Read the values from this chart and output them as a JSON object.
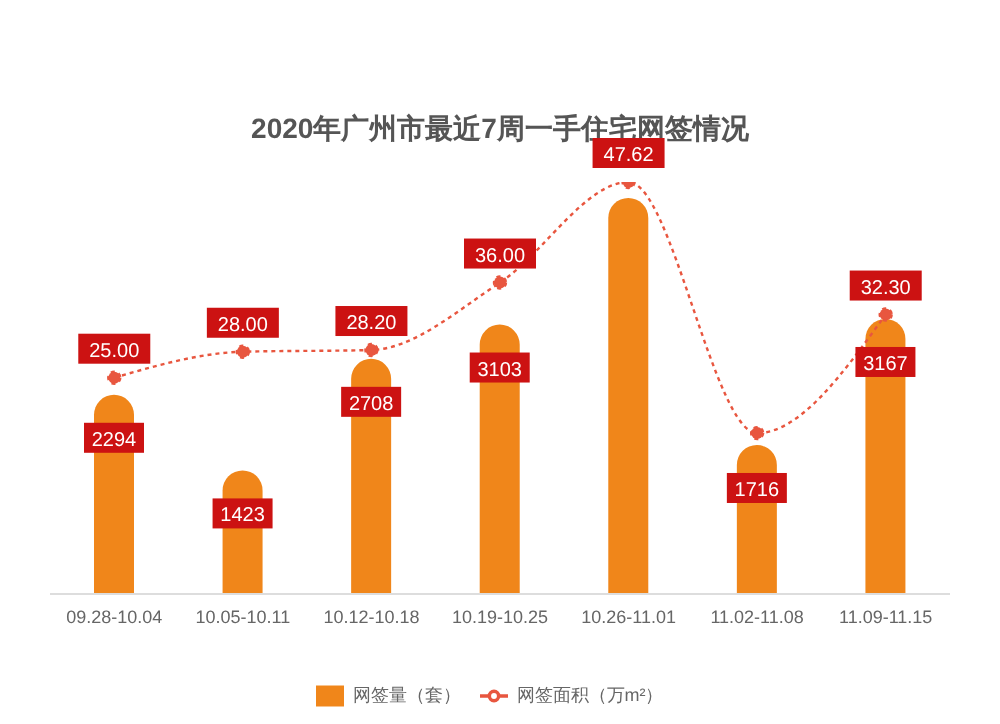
{
  "chart_data": {
    "type": "bar",
    "title": "2020年广州市最近7周一手住宅网签情况",
    "categories": [
      "09.28-10.04",
      "10.05-10.11",
      "10.12-10.18",
      "10.19-10.25",
      "10.26-11.01",
      "11.02-11.08",
      "11.09-11.15"
    ],
    "series": [
      {
        "name": "网签量（套）",
        "color": "#f0861a",
        "values": [
          2294,
          1423,
          2708,
          3103,
          4560,
          1716,
          3167
        ],
        "value_labels": [
          "2294",
          "1423",
          "2708",
          "3103",
          null,
          "1716",
          "3167"
        ]
      },
      {
        "name": "网签面积（万m²）",
        "type": "line",
        "axis": "y2",
        "color": "#e8563f",
        "values": [
          25.0,
          28.0,
          28.2,
          36.0,
          47.62,
          18.6,
          32.3
        ],
        "value_labels": [
          "25.00",
          "28.00",
          "28.20",
          "36.00",
          "47.62",
          null,
          "32.30"
        ]
      }
    ],
    "tick_labels": "x",
    "grid": false,
    "legend": "bottom",
    "marker": "circle",
    "line_style": "dotted"
  }
}
